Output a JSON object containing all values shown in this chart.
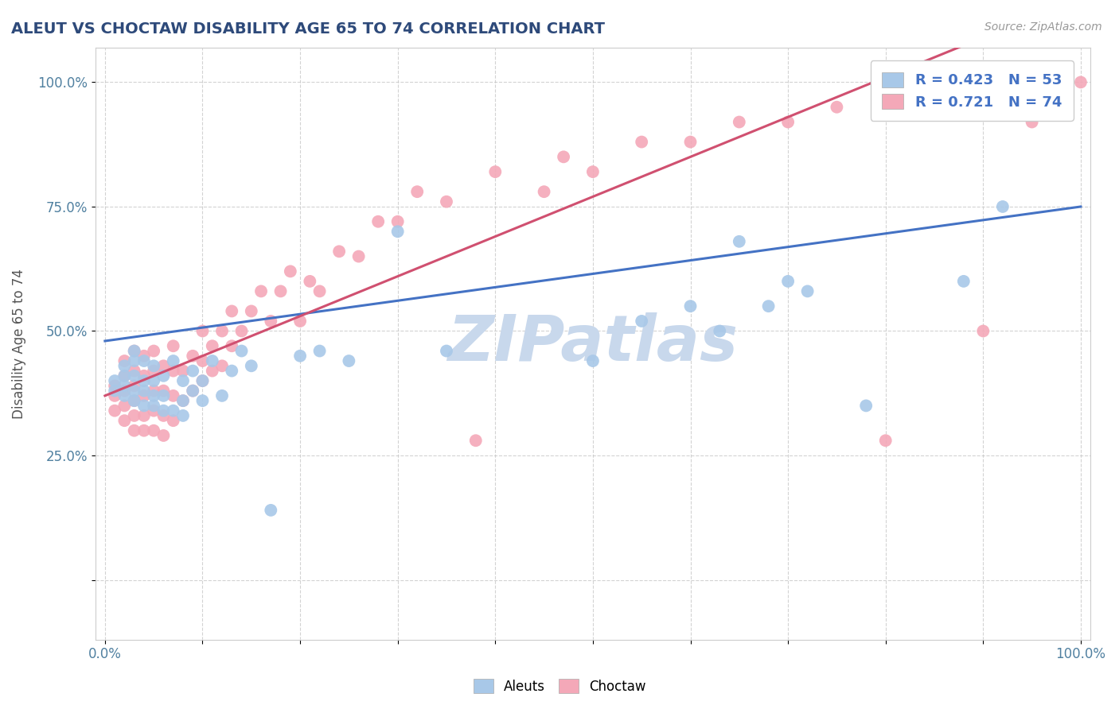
{
  "title": "ALEUT VS CHOCTAW DISABILITY AGE 65 TO 74 CORRELATION CHART",
  "source_text": "Source: ZipAtlas.com",
  "ylabel": "Disability Age 65 to 74",
  "xlabel": "",
  "xlim": [
    -0.01,
    1.01
  ],
  "ylim": [
    -0.12,
    1.07
  ],
  "xticks": [
    0.0,
    0.1,
    0.2,
    0.3,
    0.4,
    0.5,
    0.6,
    0.7,
    0.8,
    0.9,
    1.0
  ],
  "yticks": [
    0.0,
    0.25,
    0.5,
    0.75,
    1.0
  ],
  "xticklabels": [
    "0.0%",
    "",
    "",
    "",
    "",
    "",
    "",
    "",
    "",
    "",
    "100.0%"
  ],
  "yticklabels": [
    "",
    "25.0%",
    "50.0%",
    "75.0%",
    "100.0%"
  ],
  "legend_blue_label": "Aleuts",
  "legend_pink_label": "Choctaw",
  "r_blue": 0.423,
  "n_blue": 53,
  "r_pink": 0.721,
  "n_pink": 74,
  "blue_color": "#a8c8e8",
  "pink_color": "#f4a8b8",
  "blue_line_color": "#4472c4",
  "pink_line_color": "#d05070",
  "title_color": "#2E4A7A",
  "tick_color": "#5080a0",
  "watermark_color": "#c8d8ec",
  "grid_color": "#c8c8c8",
  "aleut_x": [
    0.01,
    0.01,
    0.02,
    0.02,
    0.02,
    0.02,
    0.03,
    0.03,
    0.03,
    0.03,
    0.03,
    0.04,
    0.04,
    0.04,
    0.04,
    0.05,
    0.05,
    0.05,
    0.05,
    0.06,
    0.06,
    0.06,
    0.07,
    0.07,
    0.08,
    0.08,
    0.08,
    0.09,
    0.09,
    0.1,
    0.1,
    0.11,
    0.12,
    0.13,
    0.14,
    0.15,
    0.17,
    0.2,
    0.22,
    0.25,
    0.3,
    0.35,
    0.5,
    0.55,
    0.6,
    0.63,
    0.65,
    0.68,
    0.7,
    0.72,
    0.78,
    0.88,
    0.92
  ],
  "aleut_y": [
    0.38,
    0.4,
    0.37,
    0.39,
    0.41,
    0.43,
    0.36,
    0.38,
    0.41,
    0.44,
    0.46,
    0.35,
    0.38,
    0.4,
    0.44,
    0.35,
    0.37,
    0.4,
    0.43,
    0.34,
    0.37,
    0.41,
    0.34,
    0.44,
    0.33,
    0.36,
    0.4,
    0.38,
    0.42,
    0.36,
    0.4,
    0.44,
    0.37,
    0.42,
    0.46,
    0.43,
    0.14,
    0.45,
    0.46,
    0.44,
    0.7,
    0.46,
    0.44,
    0.52,
    0.55,
    0.5,
    0.68,
    0.55,
    0.6,
    0.58,
    0.35,
    0.6,
    0.75
  ],
  "choctaw_x": [
    0.01,
    0.01,
    0.01,
    0.02,
    0.02,
    0.02,
    0.02,
    0.02,
    0.03,
    0.03,
    0.03,
    0.03,
    0.03,
    0.03,
    0.04,
    0.04,
    0.04,
    0.04,
    0.04,
    0.05,
    0.05,
    0.05,
    0.05,
    0.05,
    0.06,
    0.06,
    0.06,
    0.06,
    0.07,
    0.07,
    0.07,
    0.07,
    0.08,
    0.08,
    0.09,
    0.09,
    0.1,
    0.1,
    0.1,
    0.11,
    0.11,
    0.12,
    0.12,
    0.13,
    0.13,
    0.14,
    0.15,
    0.16,
    0.17,
    0.18,
    0.19,
    0.2,
    0.21,
    0.22,
    0.24,
    0.26,
    0.28,
    0.3,
    0.32,
    0.35,
    0.38,
    0.4,
    0.45,
    0.47,
    0.5,
    0.55,
    0.6,
    0.65,
    0.7,
    0.75,
    0.8,
    0.9,
    0.95,
    1.0
  ],
  "choctaw_y": [
    0.34,
    0.37,
    0.39,
    0.32,
    0.35,
    0.38,
    0.41,
    0.44,
    0.3,
    0.33,
    0.36,
    0.39,
    0.42,
    0.46,
    0.3,
    0.33,
    0.37,
    0.41,
    0.45,
    0.3,
    0.34,
    0.38,
    0.42,
    0.46,
    0.29,
    0.33,
    0.38,
    0.43,
    0.32,
    0.37,
    0.42,
    0.47,
    0.36,
    0.42,
    0.38,
    0.45,
    0.4,
    0.44,
    0.5,
    0.42,
    0.47,
    0.43,
    0.5,
    0.47,
    0.54,
    0.5,
    0.54,
    0.58,
    0.52,
    0.58,
    0.62,
    0.52,
    0.6,
    0.58,
    0.66,
    0.65,
    0.72,
    0.72,
    0.78,
    0.76,
    0.28,
    0.82,
    0.78,
    0.85,
    0.82,
    0.88,
    0.88,
    0.92,
    0.92,
    0.95,
    0.28,
    0.5,
    0.92,
    1.0
  ]
}
